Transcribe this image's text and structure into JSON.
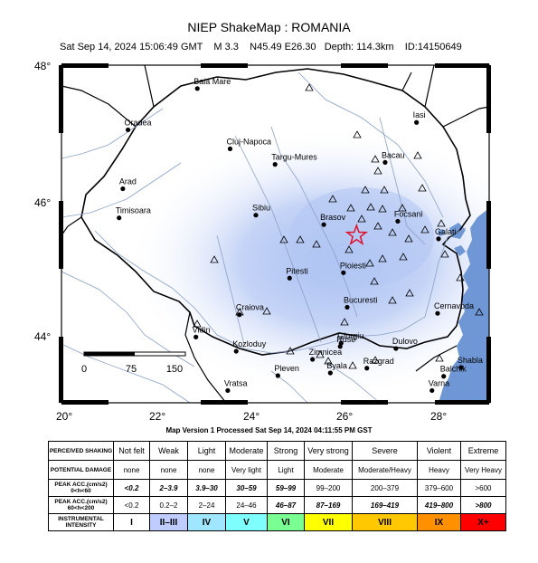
{
  "title": "NIEP ShakeMap : ROMANIA",
  "event_line": "Sat Sep 14, 2024 15:06:49 GMT    M 3.3    N45.49 E26.30   Depth: 114.3km    ID:14150649",
  "lat_labels": [
    "48°",
    "46°",
    "44°"
  ],
  "lon_labels": [
    "20°",
    "22°",
    "24°",
    "26°",
    "28°"
  ],
  "scale_labels": [
    "0",
    "75",
    "150"
  ],
  "cities": [
    {
      "name": "Baia Mare",
      "lon": 22.9,
      "lat": 47.66
    },
    {
      "name": "Oradea",
      "lon": 21.42,
      "lat": 47.05
    },
    {
      "name": "Iasi",
      "lon": 27.58,
      "lat": 47.16
    },
    {
      "name": "Cluj-Napoca",
      "lon": 23.6,
      "lat": 46.77
    },
    {
      "name": "Targu-Mures",
      "lon": 24.56,
      "lat": 46.54
    },
    {
      "name": "Bacau",
      "lon": 26.91,
      "lat": 46.57
    },
    {
      "name": "Arad",
      "lon": 21.31,
      "lat": 46.18
    },
    {
      "name": "Timisoara",
      "lon": 21.23,
      "lat": 45.75
    },
    {
      "name": "Sibiu",
      "lon": 24.15,
      "lat": 45.79
    },
    {
      "name": "Brasov",
      "lon": 25.6,
      "lat": 45.65
    },
    {
      "name": "Focsani",
      "lon": 27.18,
      "lat": 45.7
    },
    {
      "name": "Galati",
      "lon": 28.05,
      "lat": 45.44
    },
    {
      "name": "Ploiesti",
      "lon": 26.02,
      "lat": 44.94
    },
    {
      "name": "Pitesti",
      "lon": 24.87,
      "lat": 44.86
    },
    {
      "name": "Bucuresti",
      "lon": 26.1,
      "lat": 44.43
    },
    {
      "name": "Craiova",
      "lon": 23.8,
      "lat": 44.32
    },
    {
      "name": "Cernavoda",
      "lon": 28.03,
      "lat": 44.34
    },
    {
      "name": "Giurgiu",
      "lon": 25.97,
      "lat": 43.9
    },
    {
      "name": "Kozloduy",
      "lon": 23.73,
      "lat": 43.78
    },
    {
      "name": "Vidin",
      "lon": 22.87,
      "lat": 43.99
    },
    {
      "name": "Zimnicea",
      "lon": 25.36,
      "lat": 43.66
    },
    {
      "name": "Ruse",
      "lon": 25.95,
      "lat": 43.85
    },
    {
      "name": "Dulovo",
      "lon": 27.14,
      "lat": 43.82
    },
    {
      "name": "Pleven",
      "lon": 24.62,
      "lat": 43.42
    },
    {
      "name": "Byala",
      "lon": 25.74,
      "lat": 43.46
    },
    {
      "name": "Razgrad",
      "lon": 26.52,
      "lat": 43.53
    },
    {
      "name": "Shabla",
      "lon": 28.53,
      "lat": 43.54
    },
    {
      "name": "Balchik",
      "lon": 28.16,
      "lat": 43.41
    },
    {
      "name": "Vratsa",
      "lon": 23.55,
      "lat": 43.2
    },
    {
      "name": "Varna",
      "lon": 27.91,
      "lat": 43.2
    }
  ],
  "epicenter": {
    "lon": 26.3,
    "lat": 45.49
  },
  "colors": {
    "water": "#6f97d6",
    "shaking_light": "#c8d6f7",
    "epicenter": "#e0102a"
  },
  "processed": "Map Version 1 Processed Sat Sep 14, 2024 04:11:55 PM GST",
  "legend": {
    "row_headers": [
      "PERCEIVED SHAKING",
      "POTENTIAL DAMAGE",
      "PEAK ACC.(cm/s2) 0<h<60",
      "PEAK ACC.(cm/s2) 60<h<200",
      "INSTRUMENTAL INTENSITY"
    ],
    "shaking": [
      "Not felt",
      "Weak",
      "Light",
      "Moderate",
      "Strong",
      "Very strong",
      "Severe",
      "Violent",
      "Extreme"
    ],
    "damage": [
      "none",
      "none",
      "none",
      "Very light",
      "Light",
      "Moderate",
      "Moderate/Heavy",
      "Heavy",
      "Very Heavy"
    ],
    "acc_shallow": [
      "<0.2",
      "2–3.9",
      "3.9–30",
      "30–59",
      "59–99",
      "99–200",
      "200–379",
      "379–600",
      ">600"
    ],
    "acc_deep": [
      "<0.2",
      "0.2–2",
      "2–24",
      "24–46",
      "46–87",
      "87–169",
      "169–419",
      "419–800",
      ">800"
    ],
    "intensity": [
      "I",
      "II–III",
      "IV",
      "V",
      "VI",
      "VII",
      "VIII",
      "IX",
      "X+"
    ],
    "intensity_colors": [
      "#ffffff",
      "#bfccff",
      "#a0e6ff",
      "#80ffff",
      "#7aff93",
      "#ffff00",
      "#ffc800",
      "#ff9100",
      "#ff0000"
    ]
  }
}
